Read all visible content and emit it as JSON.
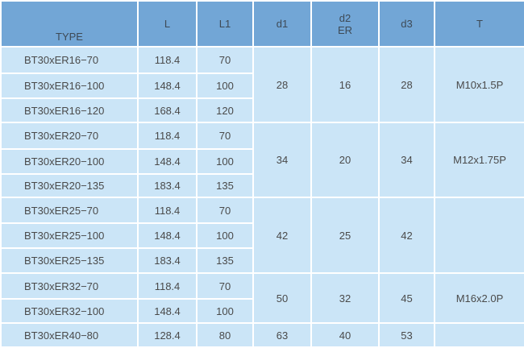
{
  "headers": {
    "type": "TYPE",
    "L": "L",
    "L1": "L1",
    "d1": "d1",
    "d2_line1": "d2",
    "d2_line2": "ER",
    "d3": "d3",
    "T": "T"
  },
  "colors": {
    "header": "#72a6d6",
    "cell": "#cbe5f7",
    "border": "#ffffff",
    "text": "#4a4a4a"
  },
  "groups": [
    {
      "d1": "28",
      "d2": "16",
      "d3": "28",
      "T": "M10x1.5P",
      "rows": [
        {
          "type": "BT30xER16−70",
          "L": "118.4",
          "L1": "70"
        },
        {
          "type": "BT30xER16−100",
          "L": "148.4",
          "L1": "100"
        },
        {
          "type": "BT30xER16−120",
          "L": "168.4",
          "L1": "120"
        }
      ]
    },
    {
      "d1": "34",
      "d2": "20",
      "d3": "34",
      "T": "M12x1.75P",
      "rows": [
        {
          "type": "BT30xER20−70",
          "L": "118.4",
          "L1": "70"
        },
        {
          "type": "BT30xER20−100",
          "L": "148.4",
          "L1": "100"
        },
        {
          "type": "BT30xER20−135",
          "L": "183.4",
          "L1": "135"
        }
      ]
    },
    {
      "d1": "42",
      "d2": "25",
      "d3": "42",
      "T": "",
      "rows": [
        {
          "type": "BT30xER25−70",
          "L": "118.4",
          "L1": "70"
        },
        {
          "type": "BT30xER25−100",
          "L": "148.4",
          "L1": "100"
        },
        {
          "type": "BT30xER25−135",
          "L": "183.4",
          "L1": "135"
        }
      ]
    },
    {
      "d1": "50",
      "d2": "32",
      "d3": "45",
      "T": "M16x2.0P",
      "rows": [
        {
          "type": "BT30xER32−70",
          "L": "118.4",
          "L1": "70"
        },
        {
          "type": "BT30xER32−100",
          "L": "148.4",
          "L1": "100"
        }
      ]
    },
    {
      "d1": "63",
      "d2": "40",
      "d3": "53",
      "T": "",
      "rows": [
        {
          "type": "BT30xER40−80",
          "L": "128.4",
          "L1": "80"
        }
      ]
    }
  ]
}
